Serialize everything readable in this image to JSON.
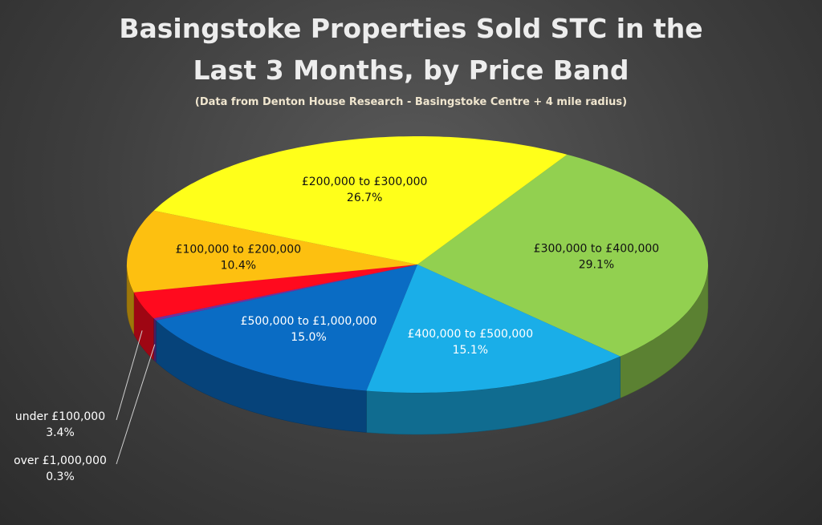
{
  "chart_data": {
    "type": "pie",
    "title_line1": "Basingstoke Properties Sold STC in the",
    "title_line2": "Last 3 Months, by Price Band",
    "subtitle": "(Data from Denton House Research - Basingstoke Centre + 4 mile radius)",
    "slices": [
      {
        "label": "£300,000 to £400,000",
        "pct_label": "29.1%",
        "value": 29.1,
        "color": "#92d050"
      },
      {
        "label": "£400,000 to £500,000",
        "pct_label": "15.1%",
        "value": 15.1,
        "color": "#1aaee8"
      },
      {
        "label": "£500,000 to £1,000,000",
        "pct_label": "15.0%",
        "value": 15.0,
        "color": "#0a6cc4"
      },
      {
        "label": "over £1,000,000",
        "pct_label": "0.3%",
        "value": 0.3,
        "color": "#7030a0"
      },
      {
        "label": "under £100,000",
        "pct_label": "3.4%",
        "value": 3.4,
        "color": "#ff0a1e"
      },
      {
        "label": "£100,000 to £200,000",
        "pct_label": "10.4%",
        "value": 10.4,
        "color": "#fdc010"
      },
      {
        "label": "£200,000 to £300,000",
        "pct_label": "26.7%",
        "value": 26.7,
        "color": "#ffff1a"
      }
    ]
  }
}
